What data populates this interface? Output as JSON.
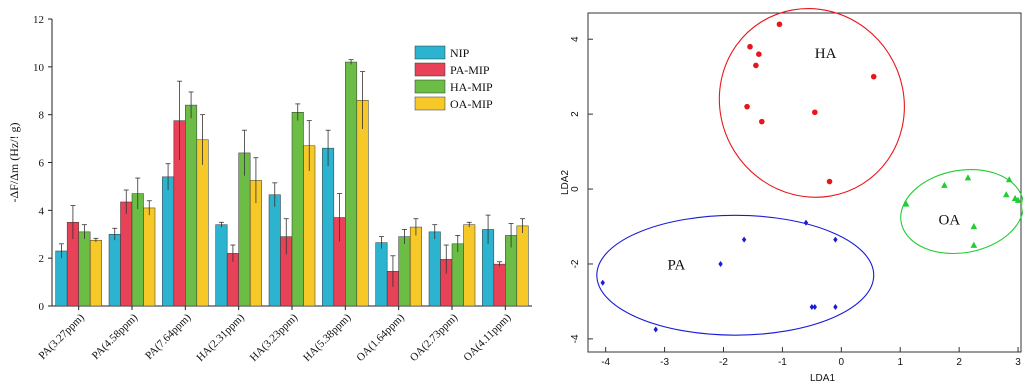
{
  "chart_data": [
    {
      "type": "bar",
      "title": "",
      "xlabel": "",
      "ylabel": "-ΔF/Δm (Hz/! g)",
      "ylim": [
        0,
        12
      ],
      "yticks": [
        0,
        2,
        4,
        6,
        8,
        10,
        12
      ],
      "grid": false,
      "legend_position": "top-right",
      "categories": [
        "PA(3.27ppm)",
        "PA(4.58ppm)",
        "PA(7.64ppm)",
        "HA(2.31ppm)",
        "HA(3.23ppm)",
        "HA(5.38ppm)",
        "OA(1.64ppm)",
        "OA(2.73ppm)",
        "OA(4.11ppm)"
      ],
      "series": [
        {
          "name": "NIP",
          "color": "#2bb3cf",
          "values": [
            2.3,
            3.0,
            5.4,
            3.4,
            4.65,
            6.6,
            2.65,
            3.1,
            3.2
          ],
          "errors": [
            0.3,
            0.25,
            0.55,
            0.1,
            0.5,
            0.75,
            0.25,
            0.3,
            0.6
          ]
        },
        {
          "name": "PA-MIP",
          "color": "#e84258",
          "values": [
            3.5,
            4.35,
            7.75,
            2.2,
            2.9,
            3.7,
            1.45,
            1.95,
            1.75
          ],
          "errors": [
            0.7,
            0.5,
            1.65,
            0.35,
            0.75,
            1.0,
            0.65,
            0.6,
            0.1
          ]
        },
        {
          "name": "HA-MIP",
          "color": "#6bbd45",
          "values": [
            3.1,
            4.7,
            8.4,
            6.4,
            8.1,
            10.2,
            2.9,
            2.6,
            2.95
          ],
          "errors": [
            0.3,
            0.65,
            0.55,
            0.95,
            0.35,
            0.1,
            0.3,
            0.35,
            0.5
          ]
        },
        {
          "name": "OA-MIP",
          "color": "#f7c928",
          "values": [
            2.75,
            4.1,
            6.95,
            5.25,
            6.7,
            8.6,
            3.3,
            3.4,
            3.35
          ],
          "errors": [
            0.08,
            0.3,
            1.05,
            0.95,
            1.05,
            1.2,
            0.35,
            0.1,
            0.3
          ]
        }
      ]
    },
    {
      "type": "scatter",
      "title": "",
      "xlabel": "LDA1",
      "ylabel": "LDA2",
      "xlim": [
        -4.3,
        3.05
      ],
      "ylim": [
        -4.35,
        4.7
      ],
      "xticks": [
        -4,
        -3,
        -2,
        -1,
        0,
        1,
        2,
        3
      ],
      "yticks": [
        -4,
        -2,
        0,
        2,
        4
      ],
      "grid": false,
      "series": [
        {
          "name": "HA",
          "color": "#e8161c",
          "marker": "circle",
          "x": [
            -1.05,
            -1.55,
            -1.4,
            -1.45,
            -1.6,
            -1.35,
            -0.45,
            0.55,
            -0.2
          ],
          "y": [
            4.4,
            3.8,
            3.6,
            3.3,
            2.2,
            1.8,
            2.05,
            3.0,
            0.2
          ]
        },
        {
          "name": "OA",
          "color": "#22cc33",
          "marker": "triangle",
          "x": [
            1.1,
            1.75,
            2.15,
            2.25,
            2.25,
            2.8,
            2.85,
            2.95,
            3.0
          ],
          "y": [
            -0.4,
            0.1,
            0.3,
            -1.0,
            -1.5,
            -0.15,
            0.25,
            -0.25,
            -0.3
          ]
        },
        {
          "name": "PA",
          "color": "#1a1ad8",
          "marker": "diamond",
          "x": [
            -4.05,
            -3.15,
            -2.05,
            -1.65,
            -0.6,
            -0.1,
            -0.5,
            -0.45,
            -0.1
          ],
          "y": [
            -2.5,
            -3.75,
            -2.0,
            -1.35,
            -0.9,
            -1.35,
            -3.15,
            -3.15,
            -3.15
          ]
        }
      ],
      "ellipses": [
        {
          "group": "HA",
          "color": "#e8161c",
          "center": [
            -0.5,
            2.3
          ],
          "rx": 1.55,
          "ry": 2.55,
          "angle_deg": -32
        },
        {
          "group": "OA",
          "color": "#22cc33",
          "center": [
            2.05,
            -0.6
          ],
          "rx": 1.05,
          "ry": 1.1,
          "angle_deg": -10
        },
        {
          "group": "PA",
          "color": "#1a1ad8",
          "center": [
            -1.8,
            -2.3
          ],
          "rx": 2.35,
          "ry": 1.6,
          "angle_deg": 0
        }
      ],
      "annotations": [
        {
          "text": "HA",
          "x": -0.45,
          "y": 3.5
        },
        {
          "text": "OA",
          "x": 1.65,
          "y": -0.95
        },
        {
          "text": "PA",
          "x": -2.95,
          "y": -2.15
        }
      ]
    }
  ]
}
